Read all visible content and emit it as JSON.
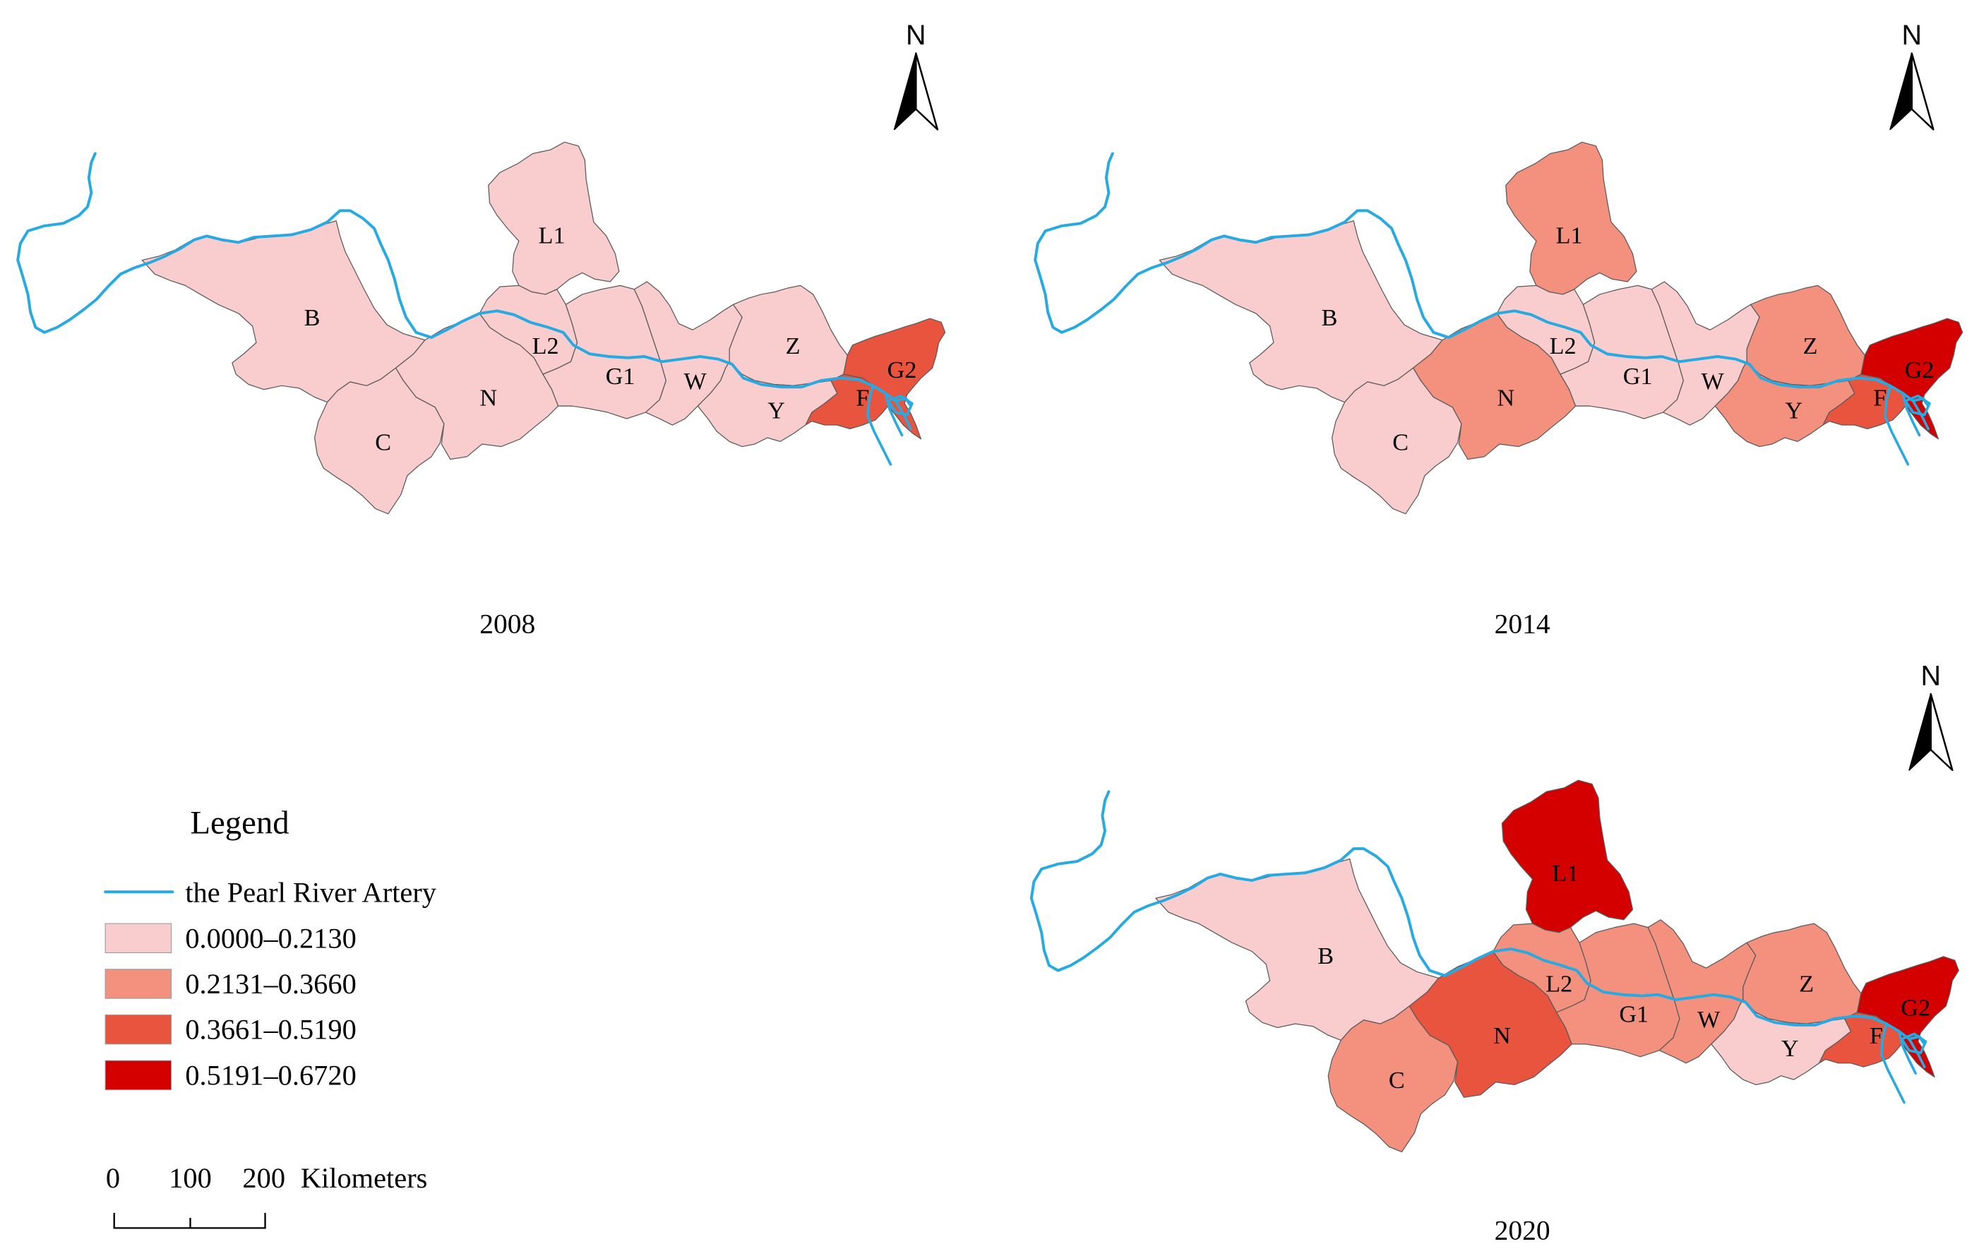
{
  "regions": [
    "B",
    "C",
    "N",
    "L1",
    "L2",
    "G1",
    "W",
    "Z",
    "Y",
    "F",
    "G2"
  ],
  "north_label": "N",
  "panels": [
    {
      "year": "2008",
      "classes": [
        0,
        0,
        0,
        0,
        0,
        0,
        0,
        0,
        0,
        2,
        2
      ]
    },
    {
      "year": "2014",
      "classes": [
        0,
        0,
        1,
        1,
        0,
        0,
        0,
        1,
        1,
        2,
        3
      ]
    },
    {
      "year": "2020",
      "classes": [
        0,
        1,
        2,
        3,
        1,
        1,
        1,
        1,
        0,
        2,
        3
      ]
    }
  ],
  "legend": {
    "title": "Legend",
    "river_label": "the Pearl River Artery",
    "river_color": "#27a9e1",
    "classes": [
      {
        "label": "0.0000–0.2130",
        "color": "#f9cdcd"
      },
      {
        "label": "0.2131–0.3660",
        "color": "#f4917e"
      },
      {
        "label": "0.3661–0.5190",
        "color": "#e9543f"
      },
      {
        "label": "0.5191–0.6720",
        "color": "#d40000"
      }
    ]
  },
  "scale_bar": {
    "ticks": [
      "0",
      "100",
      "200"
    ],
    "unit": "Kilometers"
  }
}
